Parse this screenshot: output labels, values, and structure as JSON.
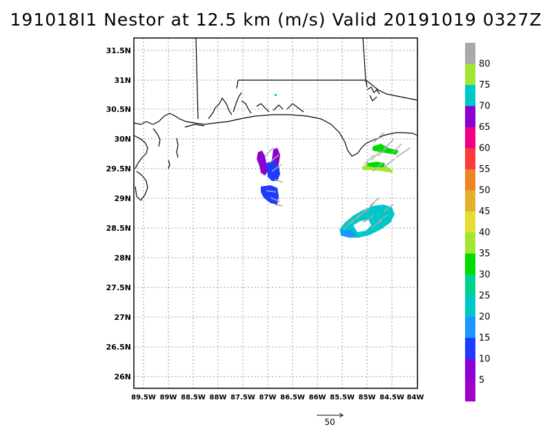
{
  "title": "191018I1 Nestor at 12.5 km (m/s) Valid 20191019 0327Z",
  "lat_labels": [
    "31.5N",
    "31N",
    "30.5N",
    "30N",
    "29.5N",
    "29N",
    "28.5N",
    "28N",
    "27.5N",
    "27N",
    "26.5N",
    "26N"
  ],
  "lon_labels": [
    "89.5W",
    "89W",
    "88.5W",
    "88W",
    "87.5W",
    "87W",
    "86.5W",
    "86W",
    "85.5W",
    "85W",
    "84.5W",
    "84W"
  ],
  "colorbar": {
    "labels": [
      "80",
      "75",
      "70",
      "65",
      "60",
      "55",
      "50",
      "45",
      "40",
      "35",
      "30",
      "25",
      "20",
      "15",
      "10",
      "5"
    ],
    "colors": [
      "#a9a9a9",
      "#a0e632",
      "#00c8c8",
      "#8c00d2",
      "#f00082",
      "#fa3c3c",
      "#f08228",
      "#e6af2d",
      "#e6dc32",
      "#a0e632",
      "#00dc00",
      "#00d28c",
      "#00c8c8",
      "#1e96ff",
      "#1e3cff",
      "#8c00d2",
      "#a000c8"
    ]
  },
  "reference_vector": {
    "label": "50"
  },
  "map_extent": {
    "lon_min": -89.6,
    "lon_max": -83.9,
    "lat_min": 25.8,
    "lat_max": 31.7
  }
}
